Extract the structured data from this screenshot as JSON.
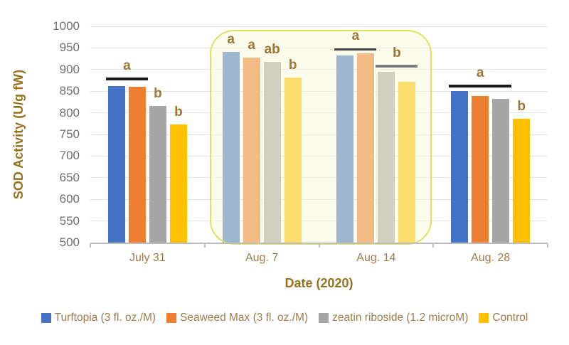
{
  "chart_data": {
    "type": "bar",
    "title": "",
    "xlabel": "Date (2020)",
    "ylabel": "SOD Activity (U/g fW)",
    "ylim": [
      500,
      1000
    ],
    "ytick_step": 50,
    "grid": true,
    "legend_position": "bottom",
    "categories": [
      "July 31",
      "Aug. 7",
      "Aug. 14",
      "Aug. 28"
    ],
    "series": [
      {
        "name": "Turftopia (3 fl. oz./M)",
        "color": "#4472c4",
        "values": [
          862,
          940,
          933,
          850
        ]
      },
      {
        "name": "Seaweed Max (3 fl. oz./M)",
        "color": "#ed7d31",
        "values": [
          860,
          927,
          937,
          839
        ]
      },
      {
        "name": "zeatin riboside (1.2 microM)",
        "color": "#a6a6a6",
        "values": [
          815,
          917,
          895,
          833
        ]
      },
      {
        "name": "Control",
        "color": "#ffc000",
        "values": [
          773,
          882,
          872,
          787
        ]
      }
    ],
    "annotations": {
      "group_lines": [
        {
          "group": 0,
          "bars": [
            0,
            1
          ],
          "value": 879,
          "color": "#1a1a1a",
          "label": "a"
        },
        {
          "group": 2,
          "bars": [
            0,
            1
          ],
          "value": 947,
          "color": "#454545",
          "label": "a"
        },
        {
          "group": 2,
          "bars": [
            2,
            3
          ],
          "value": 908,
          "color": "#7d7d7d",
          "label": "b"
        },
        {
          "group": 3,
          "bars": [
            0,
            2
          ],
          "value": 862,
          "color": "#1a1a1a",
          "label": "a"
        }
      ],
      "bar_letters": [
        {
          "group": 0,
          "bar": 2,
          "label": "b"
        },
        {
          "group": 0,
          "bar": 3,
          "label": "b"
        },
        {
          "group": 1,
          "bar": 0,
          "label": "a"
        },
        {
          "group": 1,
          "bar": 1,
          "label": "a"
        },
        {
          "group": 1,
          "bar": 2,
          "label": "ab"
        },
        {
          "group": 1,
          "bar": 3,
          "label": "b"
        },
        {
          "group": 3,
          "bar": 3,
          "label": "b"
        }
      ],
      "highlight": {
        "covers_categories": [
          "Aug. 7",
          "Aug. 14"
        ],
        "group_indices": [
          1,
          2
        ],
        "fill": "rgba(250,250,218,0.5)",
        "border": "#dde164"
      }
    }
  },
  "colors": {
    "grid": "#e2e2e2",
    "axis": "#bdbdbd",
    "ytick_label": "#6f6f6f",
    "xtick_label": "#a07c49",
    "axis_title": "#97721f",
    "sig_letter": "#9b7634"
  }
}
